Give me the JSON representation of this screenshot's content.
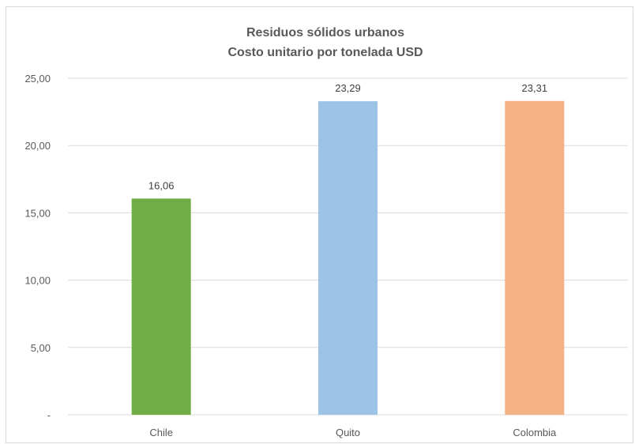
{
  "chart_data": {
    "type": "bar",
    "title": "Residuos sólidos urbanos",
    "subtitle": "Costo unitario por tonelada USD",
    "categories": [
      "Chile",
      "Quito",
      "Colombia"
    ],
    "values": [
      16.06,
      23.29,
      23.31
    ],
    "data_labels": [
      "16,06",
      "23,29",
      "23,31"
    ],
    "bar_colors": [
      "#70ad47",
      "#9dc3e6",
      "#f4b183"
    ],
    "ylim": [
      0,
      25
    ],
    "yticks": [
      0,
      5,
      10,
      15,
      20,
      25
    ],
    "ytick_labels": [
      "-",
      "5,00",
      "10,00",
      "15,00",
      "20,00",
      "25,00"
    ],
    "grid": true,
    "legend": "none",
    "xlabel": "",
    "ylabel": ""
  }
}
